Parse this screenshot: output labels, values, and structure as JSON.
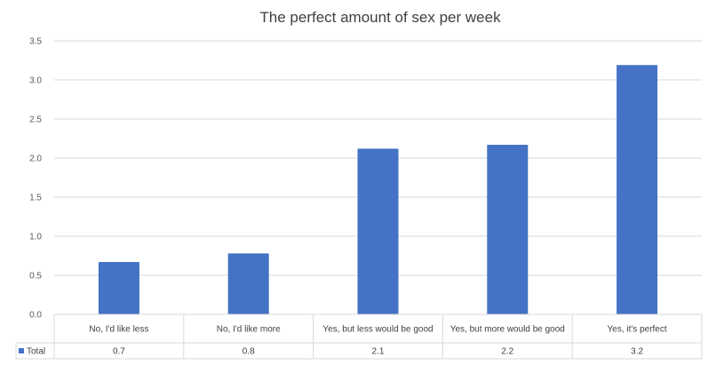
{
  "chart_data": {
    "type": "bar",
    "title": "The perfect amount of sex per week",
    "categories": [
      "No, I'd like less",
      "No, I'd like more",
      "Yes, but less would be good",
      "Yes, but more would be good",
      "Yes, it's perfect"
    ],
    "series": [
      {
        "name": "Total",
        "values": [
          0.67,
          0.78,
          2.12,
          2.17,
          3.19
        ],
        "color": "#4472C4"
      }
    ],
    "table_values": [
      "0.7",
      "0.8",
      "2.1",
      "2.2",
      "3.2"
    ],
    "ylim": [
      0,
      3.5
    ],
    "yticks": [
      "0.0",
      "0.5",
      "1.0",
      "1.5",
      "2.0",
      "2.5",
      "3.0",
      "3.5"
    ],
    "grid": true,
    "legend": "data-table"
  }
}
